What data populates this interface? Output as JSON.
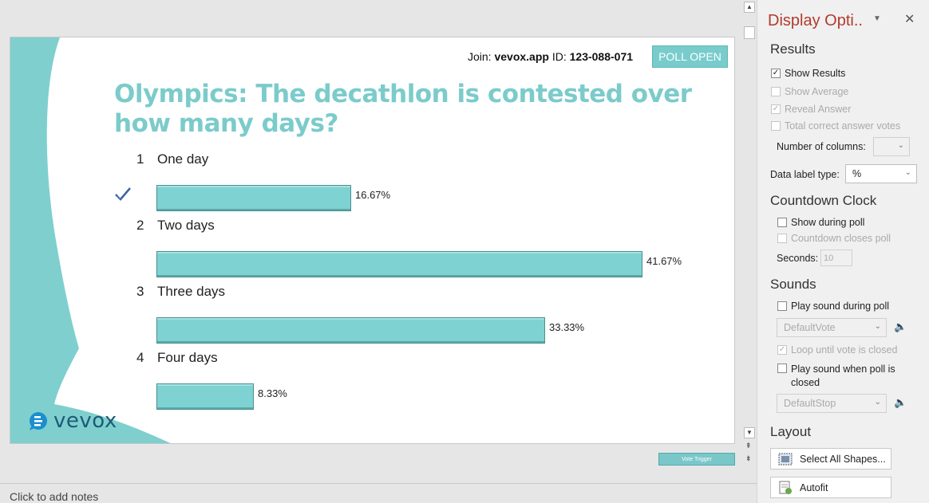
{
  "slide": {
    "join_prefix": "Join: ",
    "join_site": "vevox.app",
    "join_id_prefix": " ID: ",
    "join_id": "123-088-071",
    "status_button": "POLL OPEN",
    "question": "Olympics: The decathlon is contested over how many days?",
    "logo_text": "vevox",
    "options": [
      {
        "num": "1",
        "label": "One day",
        "percent_label": "16.67%",
        "value": 16.67,
        "correct": true
      },
      {
        "num": "2",
        "label": "Two days",
        "percent_label": "41.67%",
        "value": 41.67,
        "correct": false
      },
      {
        "num": "3",
        "label": "Three days",
        "percent_label": "33.33%",
        "value": 33.33,
        "correct": false
      },
      {
        "num": "4",
        "label": "Four days",
        "percent_label": "8.33%",
        "value": 8.33,
        "correct": false
      }
    ],
    "accent_color": "#7fd2d2"
  },
  "editor": {
    "vote_trigger": "Vote Trigger",
    "notes_placeholder": "Click to add notes"
  },
  "pane": {
    "title": "Display Opti..",
    "results": {
      "heading": "Results",
      "show_results": "Show Results",
      "show_average": "Show Average",
      "reveal_answer": "Reveal Answer",
      "total_correct": "Total correct answer votes",
      "num_columns_label": "Number of columns:",
      "num_columns_value": "",
      "data_label_type_label": "Data label type:",
      "data_label_type_value": "%"
    },
    "countdown": {
      "heading": "Countdown Clock",
      "show_during_poll": "Show during poll",
      "countdown_closes": "Countdown closes poll",
      "seconds_label": "Seconds:",
      "seconds_value": "10"
    },
    "sounds": {
      "heading": "Sounds",
      "play_during": "Play sound during poll",
      "vote_sound": "DefaultVote",
      "loop": "Loop until vote is closed",
      "play_when_closed": "Play sound when poll is closed",
      "stop_sound": "DefaultStop"
    },
    "layout": {
      "heading": "Layout",
      "select_all": "Select All Shapes...",
      "autofit": "Autofit"
    }
  }
}
